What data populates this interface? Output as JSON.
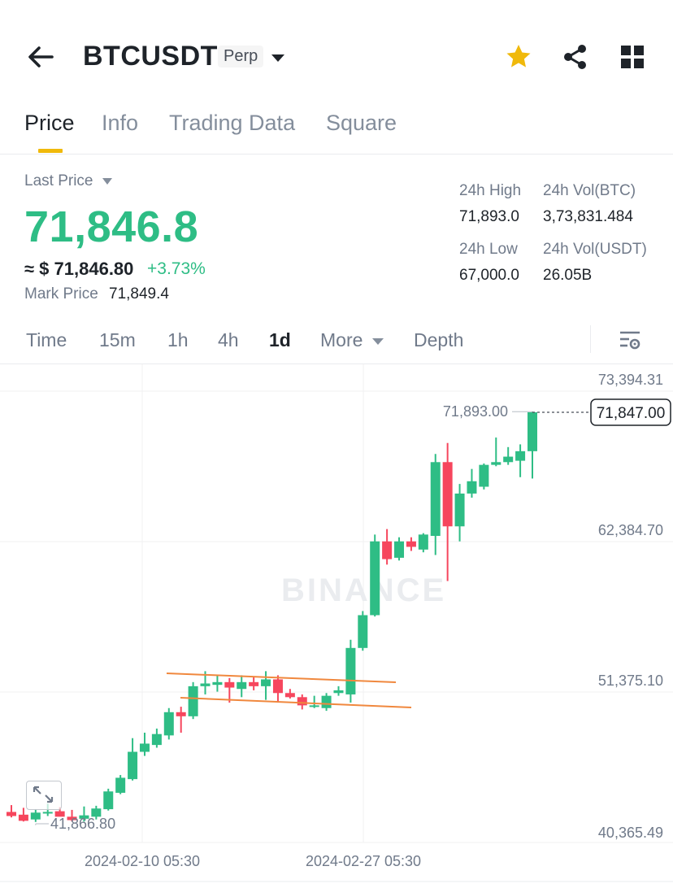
{
  "header": {
    "symbol": "BTCUSDT",
    "contract_type": "Perp"
  },
  "tabs": [
    {
      "label": "Price",
      "active": true
    },
    {
      "label": "Info",
      "active": false
    },
    {
      "label": "Trading Data",
      "active": false
    },
    {
      "label": "Square",
      "active": false
    }
  ],
  "price": {
    "last_price_label": "Last Price",
    "last_price": "71,846.8",
    "usd_equivalent": "≈ $ 71,846.80",
    "change_pct": "+3.73%",
    "mark_price_label": "Mark Price",
    "mark_price": "71,849.4"
  },
  "stats": {
    "high_label": "24h High",
    "high_value": "71,893.0",
    "low_label": "24h Low",
    "low_value": "67,000.0",
    "vol_btc_label": "24h Vol(BTC)",
    "vol_btc_value": "3,73,831.484",
    "vol_usdt_label": "24h Vol(USDT)",
    "vol_usdt_value": "26.05B"
  },
  "intervals": [
    {
      "label": "Time",
      "active": false
    },
    {
      "label": "15m",
      "active": false
    },
    {
      "label": "1h",
      "active": false
    },
    {
      "label": "4h",
      "active": false
    },
    {
      "label": "1d",
      "active": true
    },
    {
      "label": "More",
      "active": false
    },
    {
      "label": "Depth",
      "active": false
    }
  ],
  "colors": {
    "up": "#2ebd85",
    "down": "#f6465d",
    "accent": "#f0b90b",
    "trendline": "#f0883e"
  },
  "icons": {
    "back": "back-arrow-icon",
    "caret": "caret-down-icon",
    "star": "star-icon",
    "share": "share-icon",
    "grid": "grid-icon",
    "settings": "chart-settings-icon",
    "expand": "expand-icon"
  },
  "chart_data": {
    "type": "candlestick",
    "watermark": "BINANCE",
    "y_ticks": [
      "73,394.31",
      "62,384.70",
      "51,375.10",
      "40,365.49"
    ],
    "y_tick_values": [
      73394.31,
      62384.7,
      51375.1,
      40365.49
    ],
    "x_ticks": [
      "2024-02-10 05:30",
      "2024-02-27 05:30"
    ],
    "high_annotation": "71,893.00",
    "low_annotation": "41,866.80",
    "current_price_label": "71,847.00",
    "current_price": 71847.0,
    "candles": [
      {
        "o": 42600,
        "h": 43100,
        "l": 42200,
        "c": 42300
      },
      {
        "o": 42400,
        "h": 42900,
        "l": 41900,
        "c": 41950
      },
      {
        "o": 42050,
        "h": 42750,
        "l": 41866.8,
        "c": 42550
      },
      {
        "o": 42500,
        "h": 43200,
        "l": 42300,
        "c": 42600
      },
      {
        "o": 42650,
        "h": 42950,
        "l": 42450,
        "c": 42250
      },
      {
        "o": 42250,
        "h": 42750,
        "l": 41900,
        "c": 42000
      },
      {
        "o": 42100,
        "h": 43000,
        "l": 41900,
        "c": 42350
      },
      {
        "o": 42250,
        "h": 43050,
        "l": 42050,
        "c": 42850
      },
      {
        "o": 42800,
        "h": 44300,
        "l": 42700,
        "c": 44100
      },
      {
        "o": 44000,
        "h": 45300,
        "l": 43900,
        "c": 45100
      },
      {
        "o": 45000,
        "h": 48000,
        "l": 44900,
        "c": 47000
      },
      {
        "o": 47000,
        "h": 48400,
        "l": 46700,
        "c": 47600
      },
      {
        "o": 47500,
        "h": 48700,
        "l": 47300,
        "c": 48300
      },
      {
        "o": 48200,
        "h": 50200,
        "l": 47900,
        "c": 49900
      },
      {
        "o": 49900,
        "h": 50300,
        "l": 48400,
        "c": 49600
      },
      {
        "o": 49600,
        "h": 52100,
        "l": 49400,
        "c": 51800
      },
      {
        "o": 51800,
        "h": 52900,
        "l": 51200,
        "c": 52000
      },
      {
        "o": 51900,
        "h": 52600,
        "l": 51400,
        "c": 52100
      },
      {
        "o": 52100,
        "h": 52400,
        "l": 50600,
        "c": 51700
      },
      {
        "o": 51600,
        "h": 52600,
        "l": 51000,
        "c": 52100
      },
      {
        "o": 52100,
        "h": 52500,
        "l": 51500,
        "c": 51800
      },
      {
        "o": 51800,
        "h": 52900,
        "l": 50800,
        "c": 52300
      },
      {
        "o": 52300,
        "h": 52600,
        "l": 50600,
        "c": 51300
      },
      {
        "o": 51300,
        "h": 51600,
        "l": 50900,
        "c": 51000
      },
      {
        "o": 51000,
        "h": 51200,
        "l": 50100,
        "c": 50400
      },
      {
        "o": 50400,
        "h": 51100,
        "l": 50200,
        "c": 50400
      },
      {
        "o": 50200,
        "h": 51300,
        "l": 50000,
        "c": 51100
      },
      {
        "o": 51300,
        "h": 51800,
        "l": 51100,
        "c": 51500
      },
      {
        "o": 51200,
        "h": 55200,
        "l": 50600,
        "c": 54600
      },
      {
        "o": 54600,
        "h": 57300,
        "l": 54400,
        "c": 57000
      },
      {
        "o": 57000,
        "h": 62900,
        "l": 56900,
        "c": 62400
      },
      {
        "o": 62400,
        "h": 63300,
        "l": 60700,
        "c": 61100
      },
      {
        "o": 61200,
        "h": 62700,
        "l": 61000,
        "c": 62400
      },
      {
        "o": 62400,
        "h": 62700,
        "l": 61700,
        "c": 62000
      },
      {
        "o": 61800,
        "h": 63000,
        "l": 61600,
        "c": 62900
      },
      {
        "o": 62800,
        "h": 68800,
        "l": 61400,
        "c": 68200
      },
      {
        "o": 68200,
        "h": 69600,
        "l": 59500,
        "c": 63500
      },
      {
        "o": 63500,
        "h": 66600,
        "l": 62400,
        "c": 65900
      },
      {
        "o": 65900,
        "h": 67700,
        "l": 65600,
        "c": 66800
      },
      {
        "o": 66400,
        "h": 68100,
        "l": 66200,
        "c": 68000
      },
      {
        "o": 68000,
        "h": 70000,
        "l": 67900,
        "c": 68200
      },
      {
        "o": 68200,
        "h": 69300,
        "l": 68000,
        "c": 68600
      },
      {
        "o": 68300,
        "h": 69500,
        "l": 67100,
        "c": 69000
      },
      {
        "o": 69000,
        "h": 71893,
        "l": 67000,
        "c": 71847
      }
    ]
  }
}
